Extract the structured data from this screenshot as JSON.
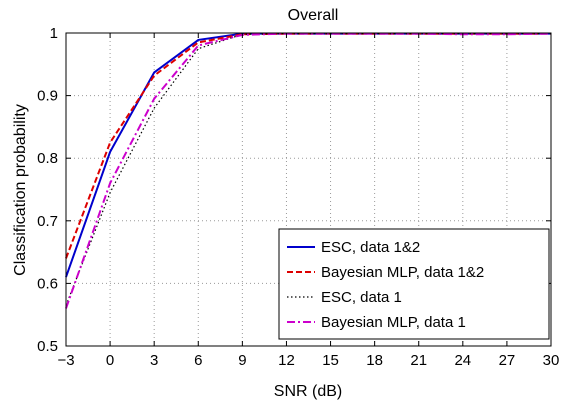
{
  "chart_data": {
    "type": "line",
    "title": "Overall",
    "xlabel": "SNR (dB)",
    "ylabel": "Classification probability",
    "xlim": [
      -3,
      30
    ],
    "ylim": [
      0.5,
      1
    ],
    "grid": true,
    "legend_position": "bottom-right",
    "x_ticks": [
      -3,
      0,
      3,
      6,
      9,
      12,
      15,
      18,
      21,
      24,
      27,
      30
    ],
    "x_tick_labels": [
      "−3",
      "0",
      "3",
      "6",
      "9",
      "12",
      "15",
      "18",
      "21",
      "24",
      "27",
      "30"
    ],
    "y_ticks": [
      0.5,
      0.6,
      0.7,
      0.8,
      0.9,
      1.0
    ],
    "y_tick_labels": [
      "0.5",
      "0.6",
      "0.7",
      "0.8",
      "0.9",
      "1"
    ],
    "x": [
      -3,
      0,
      3,
      6,
      9,
      12,
      15,
      18,
      21,
      24,
      27,
      30
    ],
    "series": [
      {
        "name": "ESC, data 1&2",
        "color": "#0000cc",
        "dash": "solid",
        "values": [
          0.61,
          0.81,
          0.937,
          0.989,
          0.999,
          0.999,
          0.999,
          0.999,
          0.999,
          0.999,
          0.999,
          0.999
        ]
      },
      {
        "name": "Bayesian MLP, data 1&2",
        "color": "#dd0000",
        "dash": "dashed",
        "values": [
          0.64,
          0.825,
          0.932,
          0.985,
          0.998,
          0.999,
          0.999,
          0.999,
          0.999,
          0.999,
          0.999,
          0.999
        ]
      },
      {
        "name": "ESC, data 1",
        "color": "#000000",
        "dash": "dotted",
        "values": [
          0.565,
          0.745,
          0.88,
          0.975,
          0.998,
          0.999,
          0.999,
          0.999,
          0.999,
          0.999,
          0.999,
          0.999
        ]
      },
      {
        "name": "Bayesian MLP, data 1",
        "color": "#cc00cc",
        "dash": "dashdot",
        "values": [
          0.56,
          0.76,
          0.895,
          0.98,
          0.997,
          0.999,
          0.999,
          0.999,
          0.999,
          0.998,
          0.998,
          0.999
        ]
      }
    ]
  }
}
